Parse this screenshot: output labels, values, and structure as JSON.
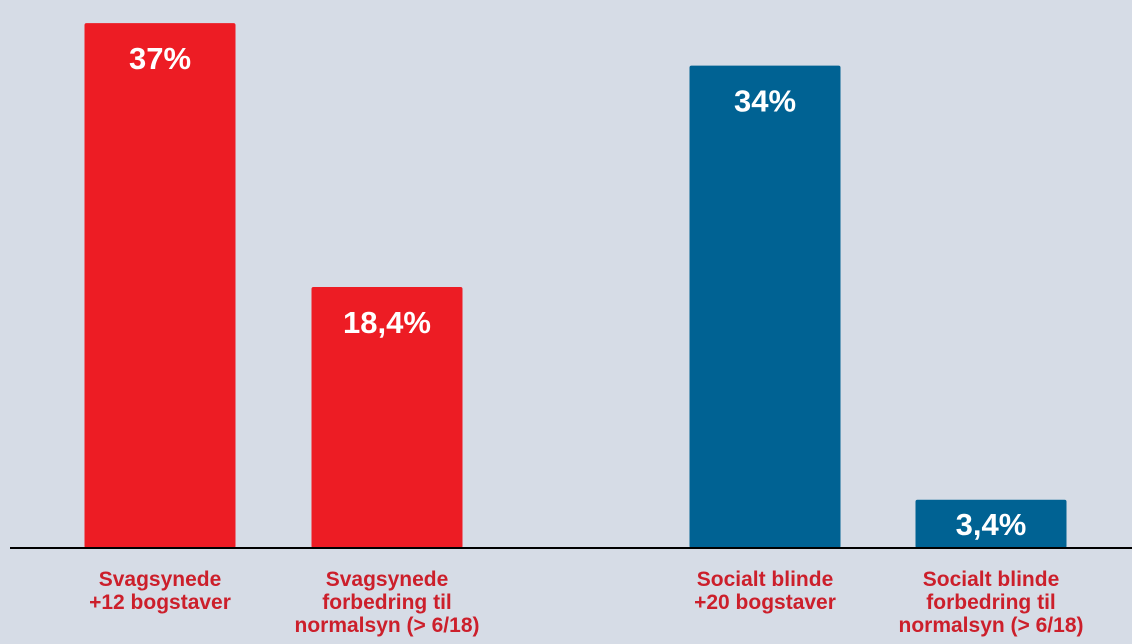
{
  "chart_data": {
    "type": "bar",
    "title": "",
    "xlabel": "",
    "ylabel": "",
    "ylim": [
      0,
      37.5
    ],
    "grid": false,
    "categories": [
      [
        "Svagsynede",
        "+12 bogstaver"
      ],
      [
        "Svagsynede",
        "forbedring til",
        "normalsyn (> 6/18)"
      ],
      [
        "Socialt blinde",
        "+20 bogstaver"
      ],
      [
        "Socialt blinde",
        "forbedring til",
        "normalsyn (> 6/18)"
      ]
    ],
    "values": [
      37,
      18.4,
      34,
      3.4
    ],
    "value_labels": [
      "37%",
      "18,4%",
      "34%",
      "3,4%"
    ],
    "bar_colors": [
      "#ed1c24",
      "#ed1c24",
      "#006293",
      "#006293"
    ],
    "category_label_color": "#cc1f2b",
    "value_label_color": "#ffffff",
    "background_color": "#d6dce6",
    "axis_color": "#000000"
  }
}
